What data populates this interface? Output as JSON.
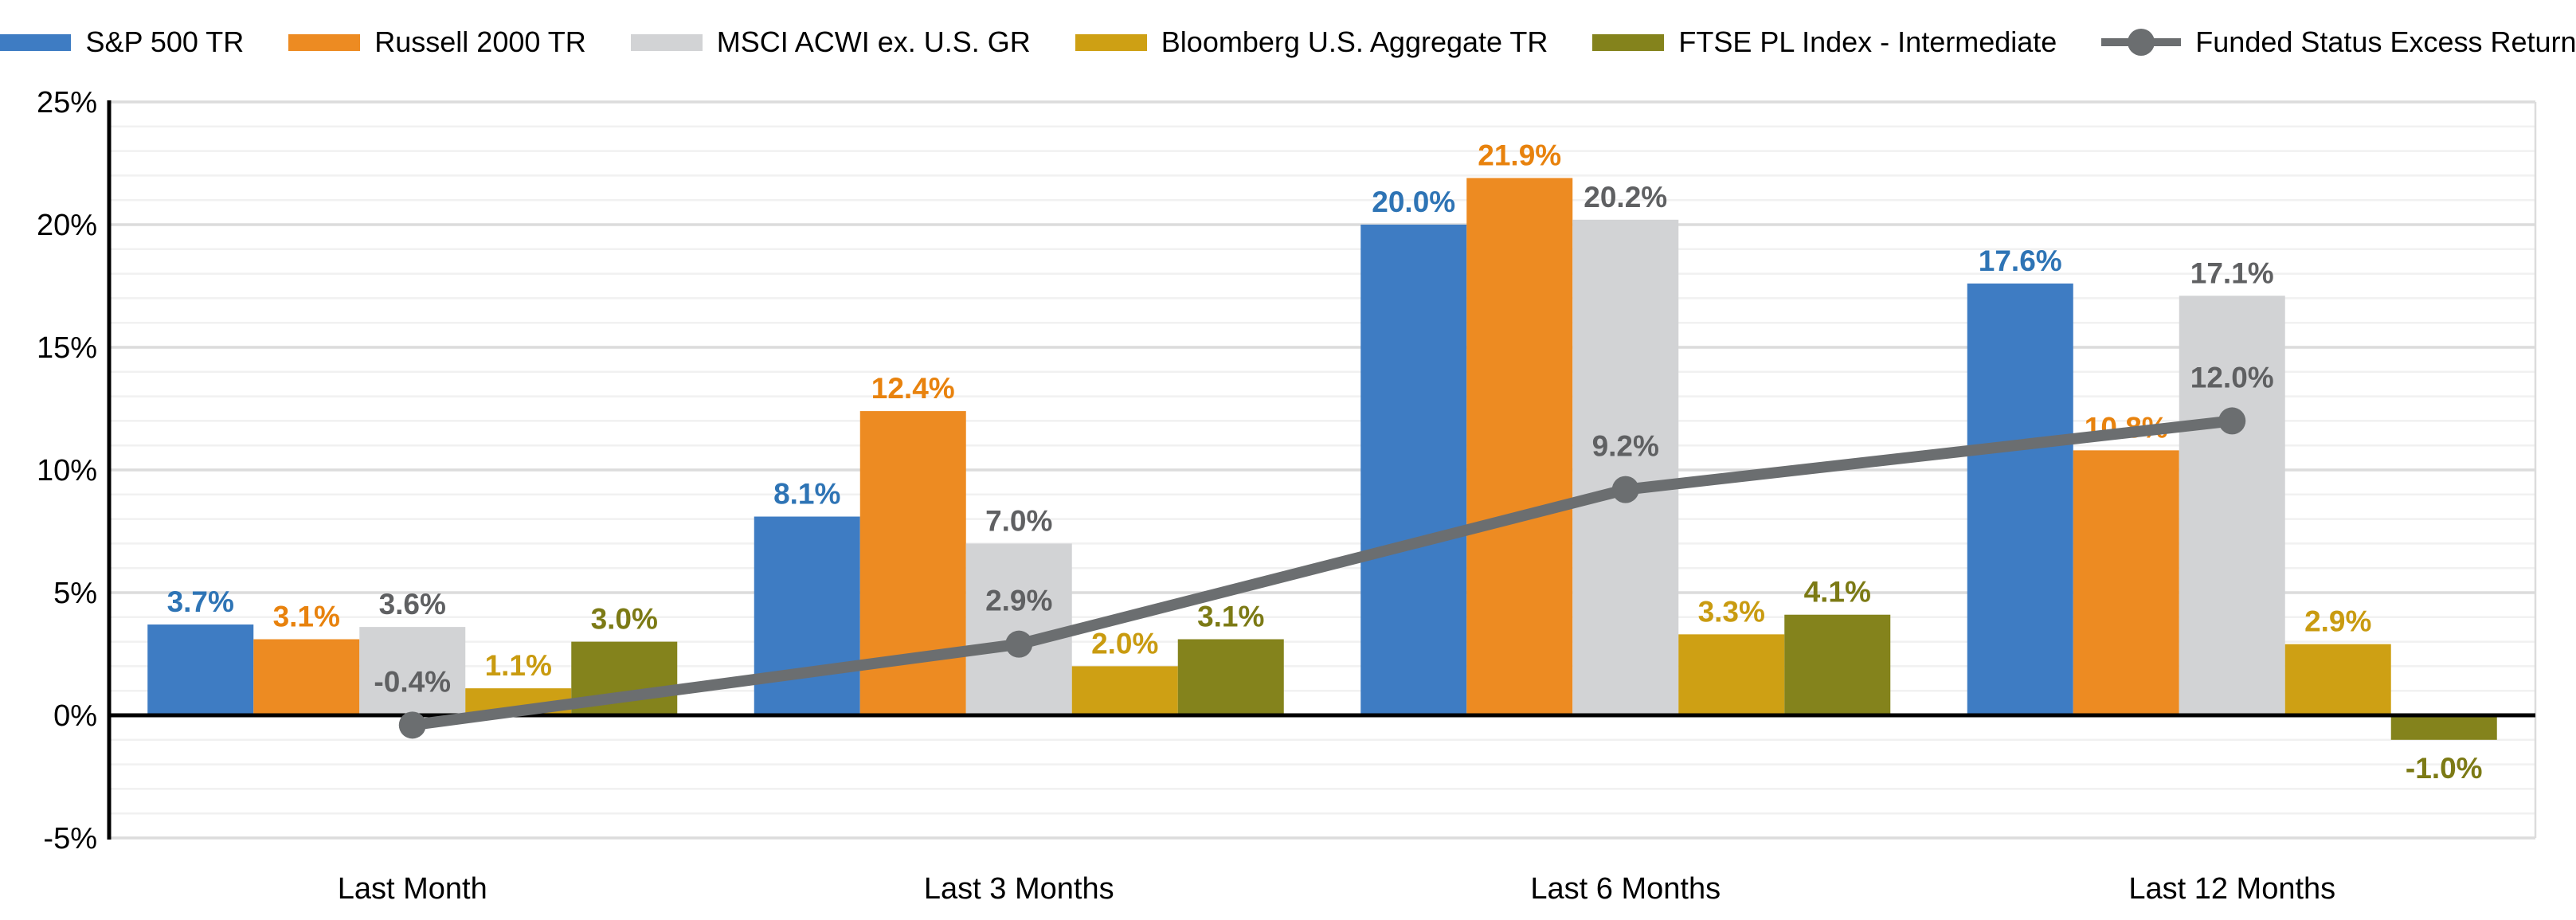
{
  "chart_data": {
    "type": "bar",
    "title": "",
    "categories": [
      "Last Month",
      "Last 3 Months",
      "Last 6 Months",
      "Last 12 Months"
    ],
    "series": [
      {
        "name": "S&P 500 TR",
        "type": "bar",
        "color": "#3E7CC3",
        "label_color": "#2E74B5",
        "values": [
          3.7,
          8.1,
          20.0,
          17.6
        ],
        "labels": [
          "3.7%",
          "8.1%",
          "20.0%",
          "17.6%"
        ]
      },
      {
        "name": "Russell 2000 TR",
        "type": "bar",
        "color": "#ED8B22",
        "label_color": "#E8820D",
        "values": [
          3.1,
          12.4,
          21.9,
          10.8
        ],
        "labels": [
          "3.1%",
          "12.4%",
          "21.9%",
          "10.8%"
        ]
      },
      {
        "name": "MSCI ACWI ex. U.S. GR",
        "type": "bar",
        "color": "#D2D3D5",
        "label_color": "#5F6062",
        "values": [
          3.6,
          7.0,
          20.2,
          17.1
        ],
        "labels": [
          "3.6%",
          "7.0%",
          "20.2%",
          "17.1%"
        ]
      },
      {
        "name": "Bloomberg U.S. Aggregate TR",
        "type": "bar",
        "color": "#CEA014",
        "label_color": "#C99B10",
        "values": [
          1.1,
          2.0,
          3.3,
          2.9
        ],
        "labels": [
          "1.1%",
          "2.0%",
          "3.3%",
          "2.9%"
        ]
      },
      {
        "name": "FTSE PL Index - Intermediate",
        "type": "bar",
        "color": "#84831C",
        "label_color": "#7C7A15",
        "values": [
          3.0,
          3.1,
          4.1,
          -1.0
        ],
        "labels": [
          "3.0%",
          "3.1%",
          "4.1%",
          "-1.0%"
        ]
      },
      {
        "name": "Funded Status Excess Return",
        "type": "line",
        "color": "#6B6E70",
        "label_color": "#5F6062",
        "values": [
          -0.4,
          2.9,
          9.2,
          12.0
        ],
        "labels": [
          "-0.4%",
          "2.9%",
          "9.2%",
          "12.0%"
        ]
      }
    ],
    "ylim": [
      -5,
      25
    ],
    "y_major_step": 5,
    "y_minor_step": 1,
    "y_ticks": [
      "25%",
      "20%",
      "15%",
      "10%",
      "5%",
      "0%",
      "-5%"
    ],
    "value_suffix": "%",
    "legend_position": "top",
    "grid": true
  },
  "colors": {
    "background": "#FFFFFF",
    "axis_line": "#000000",
    "grid_major": "#DCDCDC",
    "grid_minor": "#F1F1F1",
    "tick_label": "#000000",
    "category_label": "#000000",
    "legend_label": "#000000"
  }
}
